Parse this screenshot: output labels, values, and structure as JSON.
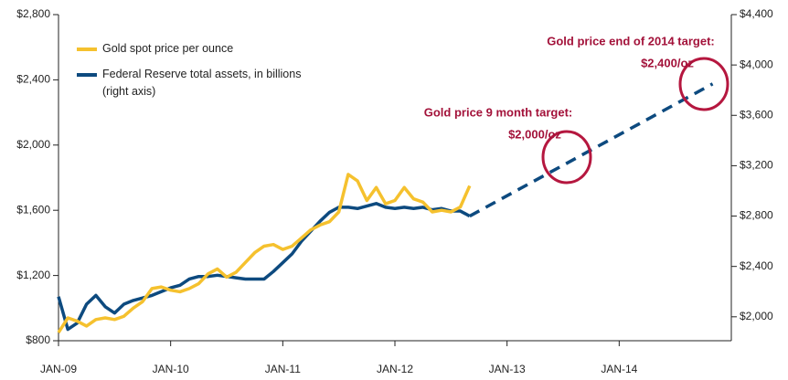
{
  "chart_data": {
    "type": "line",
    "x": [
      "2009-01",
      "2009-02",
      "2009-03",
      "2009-04",
      "2009-05",
      "2009-06",
      "2009-07",
      "2009-08",
      "2009-09",
      "2009-10",
      "2009-11",
      "2009-12",
      "2010-01",
      "2010-02",
      "2010-03",
      "2010-04",
      "2010-05",
      "2010-06",
      "2010-07",
      "2010-08",
      "2010-09",
      "2010-10",
      "2010-11",
      "2010-12",
      "2011-01",
      "2011-02",
      "2011-03",
      "2011-04",
      "2011-05",
      "2011-06",
      "2011-07",
      "2011-08",
      "2011-09",
      "2011-10",
      "2011-11",
      "2011-12",
      "2012-01",
      "2012-02",
      "2012-03",
      "2012-04",
      "2012-05",
      "2012-06",
      "2012-07",
      "2012-08",
      "2012-09"
    ],
    "series": [
      {
        "name": "Gold spot price per ounce",
        "color": "#f5c12e",
        "axis": "y",
        "values": [
          850,
          940,
          920,
          890,
          930,
          940,
          930,
          950,
          1000,
          1040,
          1120,
          1130,
          1110,
          1100,
          1120,
          1150,
          1210,
          1240,
          1190,
          1220,
          1280,
          1340,
          1380,
          1390,
          1360,
          1380,
          1430,
          1480,
          1510,
          1530,
          1590,
          1820,
          1780,
          1660,
          1740,
          1640,
          1660,
          1740,
          1670,
          1650,
          1590,
          1600,
          1590,
          1620,
          1750
        ]
      },
      {
        "name": "Federal Reserve total assets, in billions (right axis)",
        "color": "#0d4a7f",
        "axis": "y2",
        "values": [
          2160,
          1900,
          1950,
          2100,
          2170,
          2080,
          2030,
          2100,
          2130,
          2150,
          2170,
          2200,
          2230,
          2250,
          2300,
          2320,
          2320,
          2330,
          2320,
          2310,
          2300,
          2300,
          2300,
          2360,
          2430,
          2500,
          2600,
          2680,
          2760,
          2830,
          2870,
          2870,
          2860,
          2880,
          2900,
          2870,
          2860,
          2870,
          2860,
          2870,
          2850,
          2860,
          2840,
          2840,
          2800
        ]
      }
    ],
    "projection": {
      "color": "#0d4a7f",
      "axis": "y2",
      "dashed": true,
      "x": [
        "2012-09",
        "2014-11"
      ],
      "values": [
        2800,
        3850
      ]
    },
    "annotations": [
      [
        "Gold price 9 month target:",
        "$2,000/oz"
      ],
      [
        "Gold price end of 2014 target:",
        "$2,400/oz"
      ]
    ],
    "annotation_color": "#a3123a",
    "xlim": [
      "2009-01",
      "2015-01"
    ],
    "xticks": [
      {
        "value": "2009-01",
        "label": "JAN-09"
      },
      {
        "value": "2010-01",
        "label": "JAN-10"
      },
      {
        "value": "2011-01",
        "label": "JAN-11"
      },
      {
        "value": "2012-01",
        "label": "JAN-12"
      },
      {
        "value": "2013-01",
        "label": "JAN-13"
      },
      {
        "value": "2014-01",
        "label": "JAN-14"
      }
    ],
    "ylim": [
      800,
      2800
    ],
    "yticks": [
      {
        "value": 800,
        "label": "$800"
      },
      {
        "value": 1200,
        "label": "$1,200"
      },
      {
        "value": 1600,
        "label": "$1,600"
      },
      {
        "value": 2000,
        "label": "$2,000"
      },
      {
        "value": 2400,
        "label": "$2,400"
      },
      {
        "value": 2800,
        "label": "$2,800"
      }
    ],
    "y2lim": [
      1810,
      4400
    ],
    "y2ticks": [
      {
        "value": 2000,
        "label": "$2,000"
      },
      {
        "value": 2400,
        "label": "$2,400"
      },
      {
        "value": 2800,
        "label": "$2,800"
      },
      {
        "value": 3200,
        "label": "$3,200"
      },
      {
        "value": 3600,
        "label": "$3,600"
      },
      {
        "value": 4000,
        "label": "$4,000"
      },
      {
        "value": 4400,
        "label": "$4,400"
      }
    ],
    "legend": "upper left"
  }
}
